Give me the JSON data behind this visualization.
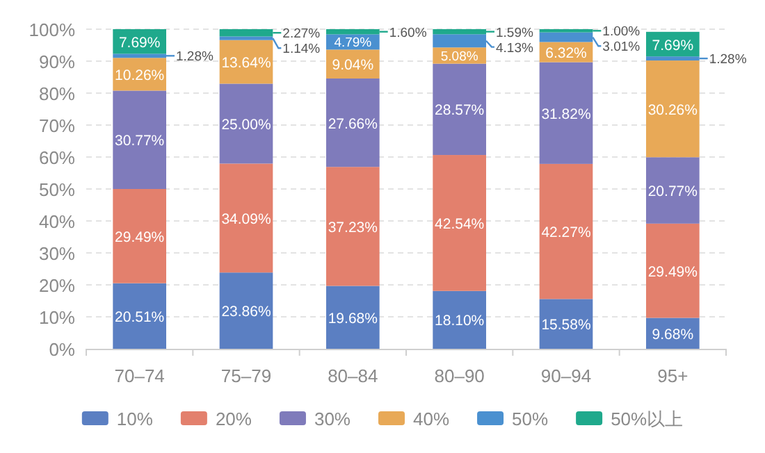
{
  "chart_data": {
    "type": "bar",
    "stacked": true,
    "categories": [
      "70–74",
      "75–79",
      "80–84",
      "80–90",
      "90–94",
      "95+"
    ],
    "ylim": [
      0,
      100
    ],
    "yticks": [
      {
        "value": 0,
        "label": "0%"
      },
      {
        "value": 10,
        "label": "10%"
      },
      {
        "value": 20,
        "label": "20%"
      },
      {
        "value": 30,
        "label": "30%"
      },
      {
        "value": 40,
        "label": "40%"
      },
      {
        "value": 50,
        "label": "50%"
      },
      {
        "value": 60,
        "label": "60%"
      },
      {
        "value": 70,
        "label": "70%"
      },
      {
        "value": 80,
        "label": "80%"
      },
      {
        "value": 90,
        "label": "90%"
      },
      {
        "value": 100,
        "label": "100%"
      }
    ],
    "grid": "y",
    "legend": "bottom",
    "series": [
      {
        "name": "10%",
        "color": "#5b7fc2",
        "values": [
          20.51,
          23.86,
          19.68,
          18.1,
          15.58,
          9.68
        ],
        "value_labels": [
          "20.51%",
          "23.86%",
          "19.68%",
          "18.10%",
          "15.58%",
          "9.68%"
        ]
      },
      {
        "name": "20%",
        "color": "#e3806d",
        "values": [
          29.49,
          34.09,
          37.23,
          42.54,
          42.27,
          29.49
        ],
        "value_labels": [
          "29.49%",
          "34.09%",
          "37.23%",
          "42.54%",
          "42.27%",
          "29.49%"
        ]
      },
      {
        "name": "30%",
        "color": "#7f7bbb",
        "values": [
          30.77,
          25.0,
          27.66,
          28.57,
          31.82,
          20.77
        ],
        "value_labels": [
          "30.77%",
          "25.00%",
          "27.66%",
          "28.57%",
          "31.82%",
          "20.77%"
        ]
      },
      {
        "name": "40%",
        "color": "#e8a957",
        "values": [
          10.26,
          13.64,
          9.04,
          5.08,
          6.32,
          30.26
        ],
        "value_labels": [
          "10.26%",
          "13.64%",
          "9.04%",
          "5.08%",
          "6.32%",
          "30.26%"
        ]
      },
      {
        "name": "50%",
        "color": "#4a90d0",
        "values": [
          1.28,
          1.14,
          4.79,
          4.13,
          3.01,
          1.28
        ],
        "value_labels": [
          "1.28%",
          "1.14%",
          "4.79%",
          "4.13%",
          "3.01%",
          "1.28%"
        ]
      },
      {
        "name": "50%以上",
        "color": "#1fa98c",
        "values": [
          7.69,
          2.27,
          1.6,
          1.59,
          1.0,
          7.69
        ],
        "value_labels": [
          "7.69%",
          "2.27%",
          "1.60%",
          "1.59%",
          "1.00%",
          "7.69%"
        ]
      }
    ]
  }
}
